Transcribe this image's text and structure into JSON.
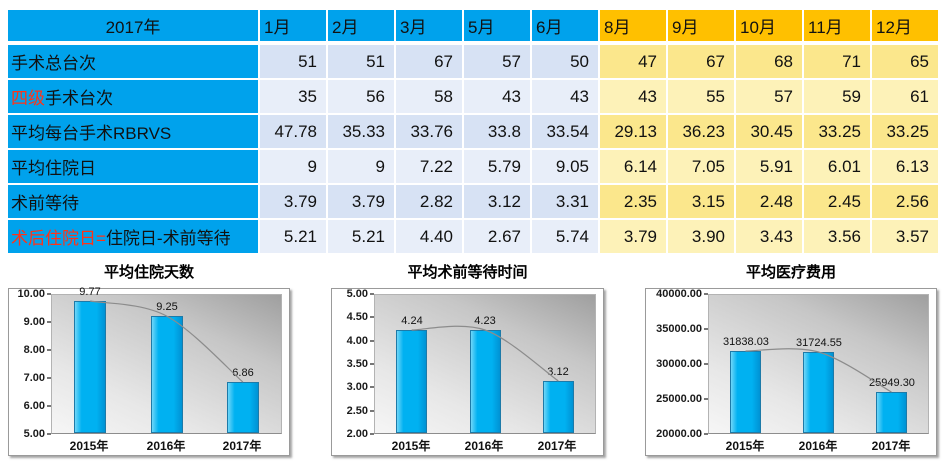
{
  "colors": {
    "header_blue": "#00A2EC",
    "header_orange": "#FFC000",
    "blue_row_odd": "#D7E2F4",
    "blue_row_even": "#E8EEF9",
    "yellow_row_odd": "#FBE78C",
    "yellow_row_even": "#FDF2B8",
    "red_text": "#FF3318",
    "bar_cyan": "#00B0F0",
    "trend_line_gray": "#8c8c8c"
  },
  "table": {
    "header": [
      "2017年",
      "1月",
      "2月",
      "3月",
      "5月",
      "6月",
      "8月",
      "9月",
      "10月",
      "11月",
      "12月"
    ],
    "blue_month_count": 5,
    "rows": [
      {
        "label_parts": [
          {
            "text": "手术总台次",
            "red": false
          }
        ],
        "values": [
          "51",
          "51",
          "67",
          "57",
          "50",
          "47",
          "67",
          "68",
          "71",
          "65"
        ]
      },
      {
        "label_parts": [
          {
            "text": "四级",
            "red": true
          },
          {
            "text": "手术台次",
            "red": false
          }
        ],
        "values": [
          "35",
          "56",
          "58",
          "43",
          "43",
          "43",
          "55",
          "57",
          "59",
          "61"
        ]
      },
      {
        "label_parts": [
          {
            "text": "平均每台手术RBRVS",
            "red": false
          }
        ],
        "values": [
          "47.78",
          "35.33",
          "33.76",
          "33.8",
          "33.54",
          "29.13",
          "36.23",
          "30.45",
          "33.25",
          "33.25"
        ]
      },
      {
        "label_parts": [
          {
            "text": "平均住院日",
            "red": false
          }
        ],
        "values": [
          "9",
          "9",
          "7.22",
          "5.79",
          "9.05",
          "6.14",
          "7.05",
          "5.91",
          "6.01",
          "6.13"
        ]
      },
      {
        "label_parts": [
          {
            "text": "术前等待",
            "red": false
          }
        ],
        "values": [
          "3.79",
          "3.79",
          "2.82",
          "3.12",
          "3.31",
          "2.35",
          "3.15",
          "2.48",
          "2.45",
          "2.56"
        ]
      },
      {
        "label_parts": [
          {
            "text": "术后住院日=",
            "red": true
          },
          {
            "text": "住院日-术前等待",
            "red": false
          }
        ],
        "values": [
          "5.21",
          "5.21",
          "4.40",
          "2.67",
          "5.74",
          "3.79",
          "3.90",
          "3.43",
          "3.56",
          "3.57"
        ]
      }
    ]
  },
  "chart_data": [
    {
      "type": "bar",
      "title": "平均住院天数",
      "categories": [
        "2015年",
        "2016年",
        "2017年"
      ],
      "values": [
        9.77,
        9.25,
        6.86
      ],
      "value_labels": [
        "9.77",
        "9.25",
        "6.86"
      ],
      "ylim": [
        5,
        10
      ],
      "ytick_step": 1,
      "ylabel": "",
      "xlabel": "",
      "grid": false,
      "legend": "none",
      "trend_line": true
    },
    {
      "type": "bar",
      "title": "平均术前等待时间",
      "categories": [
        "2015年",
        "2016年",
        "2017年"
      ],
      "values": [
        4.24,
        4.23,
        3.12
      ],
      "value_labels": [
        "4.24",
        "4.23",
        "3.12"
      ],
      "ylim": [
        2,
        5
      ],
      "ytick_step": 0.5,
      "ylabel": "",
      "xlabel": "",
      "grid": false,
      "legend": "none",
      "trend_line": true
    },
    {
      "type": "bar",
      "title": "平均医疗费用",
      "categories": [
        "2015年",
        "2016年",
        "2017年"
      ],
      "values": [
        31838.03,
        31724.55,
        25949.3
      ],
      "value_labels": [
        "31838.03",
        "31724.55",
        "25949.30"
      ],
      "ylim": [
        20000,
        40000
      ],
      "ytick_step": 5000,
      "ylabel": "",
      "xlabel": "",
      "grid": false,
      "legend": "none",
      "trend_line": true
    }
  ]
}
